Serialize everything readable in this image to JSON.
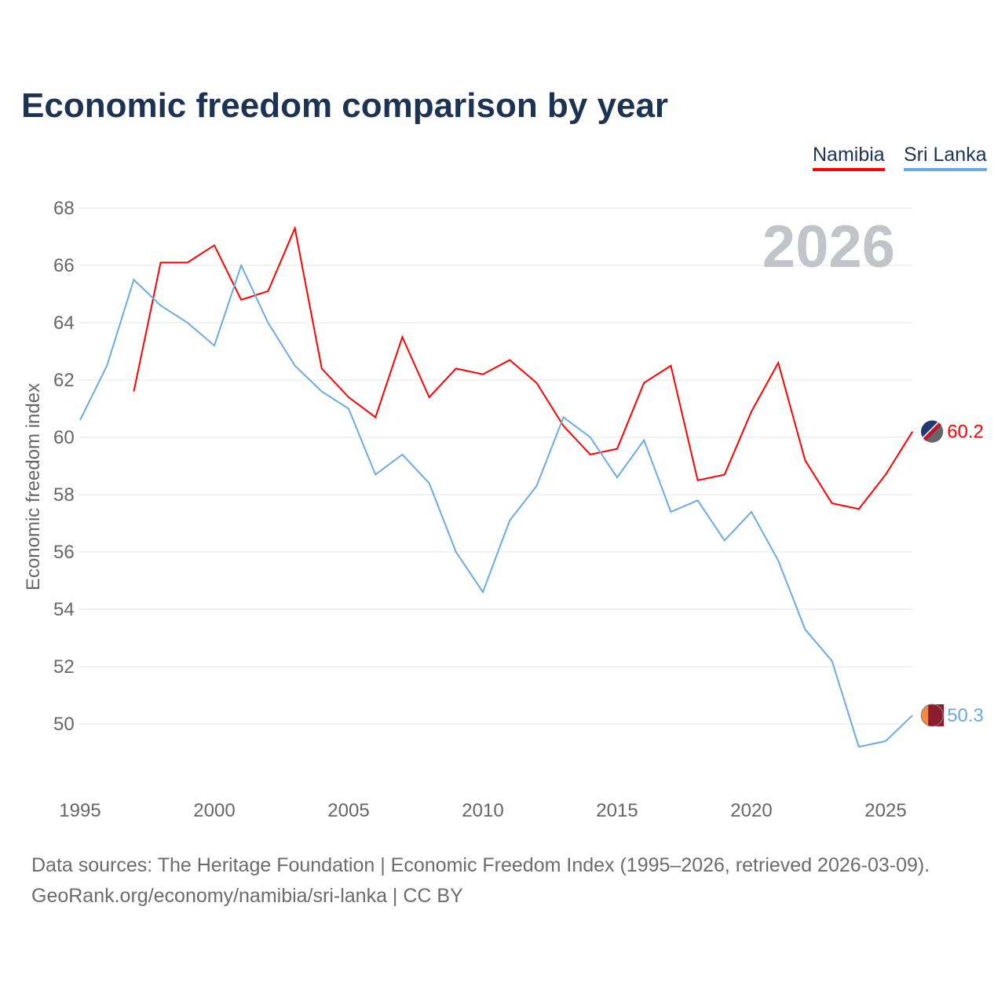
{
  "title": "Economic freedom comparison by year",
  "footer": {
    "line1": "Data sources: The Heritage Foundation | Economic Freedom Index (1995–2026, retrieved 2026-03-09).",
    "line2": "GeoRank.org/economy/namibia/sri-lanka | CC BY"
  },
  "chart_data": {
    "type": "line",
    "title": "Economic freedom comparison by year",
    "xlabel": "",
    "ylabel": "Economic freedom index",
    "year_watermark": "2026",
    "xlim": [
      1995,
      2026
    ],
    "ylim": [
      48,
      68
    ],
    "x_ticks": [
      "1995",
      "2000",
      "2005",
      "2010",
      "2015",
      "2020",
      "2025"
    ],
    "y_ticks": [
      "50",
      "52",
      "54",
      "56",
      "58",
      "60",
      "62",
      "64",
      "66",
      "68"
    ],
    "grid": true,
    "legend_position": "top-right",
    "series": [
      {
        "name": "Namibia",
        "color": "#ff0000",
        "end_label": "60.2",
        "x": [
          1997,
          1998,
          1999,
          2000,
          2001,
          2002,
          2003,
          2004,
          2005,
          2006,
          2007,
          2008,
          2009,
          2010,
          2011,
          2012,
          2013,
          2014,
          2015,
          2016,
          2017,
          2018,
          2019,
          2020,
          2021,
          2022,
          2023,
          2024,
          2025,
          2026
        ],
        "values": [
          61.6,
          66.1,
          66.1,
          66.7,
          64.8,
          65.1,
          67.3,
          62.4,
          61.4,
          60.7,
          63.5,
          61.4,
          62.4,
          62.2,
          62.7,
          61.9,
          60.4,
          59.4,
          59.6,
          61.9,
          62.5,
          58.5,
          58.7,
          60.9,
          62.6,
          59.2,
          57.7,
          57.5,
          58.7,
          60.2
        ]
      },
      {
        "name": "Sri Lanka",
        "color": "#6aaae8",
        "end_label": "50.3",
        "x": [
          1995,
          1996,
          1997,
          1998,
          1999,
          2000,
          2001,
          2002,
          2003,
          2004,
          2005,
          2006,
          2007,
          2008,
          2009,
          2010,
          2011,
          2012,
          2013,
          2014,
          2015,
          2016,
          2017,
          2018,
          2019,
          2020,
          2021,
          2022,
          2023,
          2024,
          2025,
          2026
        ],
        "values": [
          60.6,
          62.5,
          65.5,
          64.6,
          64.0,
          63.2,
          66.0,
          64.0,
          62.5,
          61.6,
          61.0,
          58.7,
          59.4,
          58.4,
          56.0,
          54.6,
          57.1,
          58.3,
          60.7,
          60.0,
          58.6,
          59.9,
          57.4,
          57.8,
          56.4,
          57.4,
          55.7,
          53.3,
          52.2,
          49.2,
          49.4,
          50.3
        ]
      }
    ]
  }
}
